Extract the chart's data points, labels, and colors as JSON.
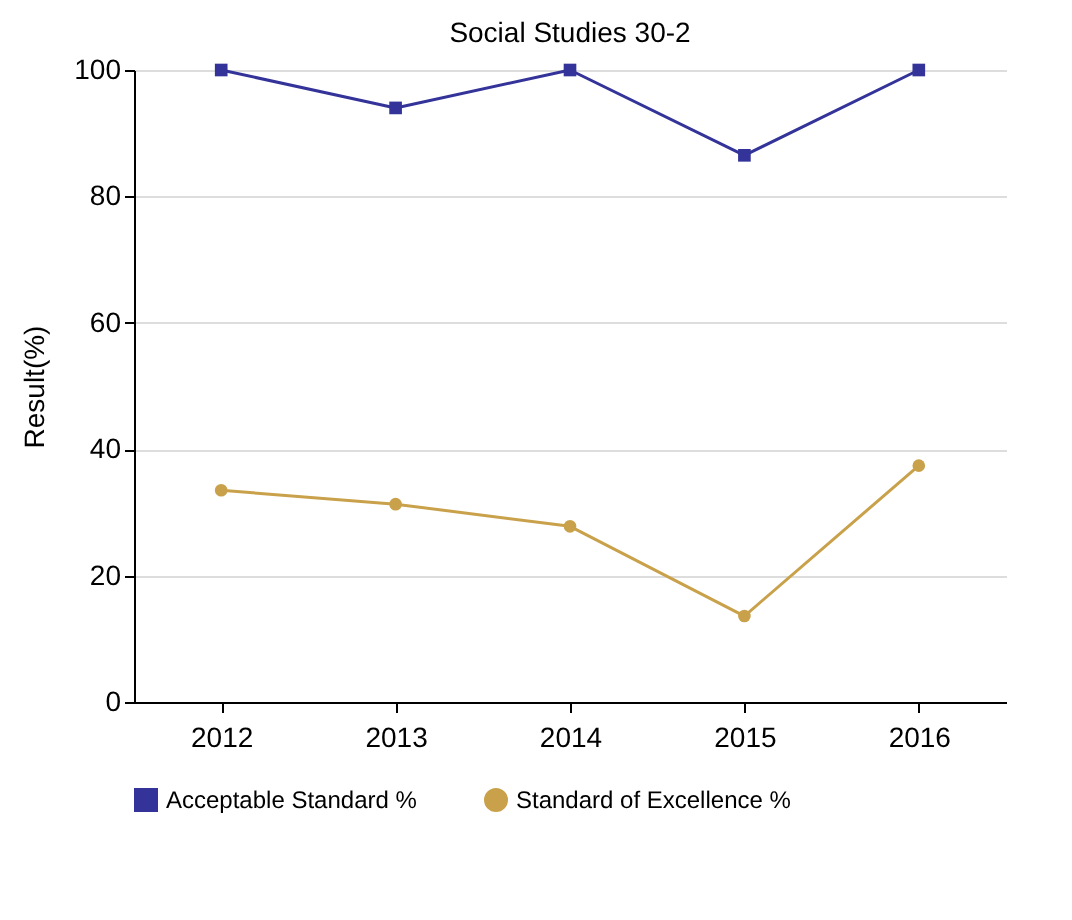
{
  "chart_data": {
    "type": "line",
    "title": "Social Studies 30-2",
    "ylabel": "Result(%)",
    "categories": [
      "2012",
      "2013",
      "2014",
      "2015",
      "2016"
    ],
    "series": [
      {
        "name": "Acceptable Standard %",
        "color": "#333399",
        "marker": "square",
        "values": [
          100,
          94,
          100,
          86.5,
          100
        ]
      },
      {
        "name": "Standard of Excellence %",
        "color": "#c9a14a",
        "marker": "circle",
        "values": [
          33.5,
          31.3,
          27.8,
          13.6,
          37.4
        ]
      }
    ],
    "ylim": [
      0,
      100
    ],
    "yticks": [
      0,
      20,
      40,
      60,
      80,
      100
    ],
    "grid": "y",
    "legend": "bottom",
    "line_style": "solid"
  }
}
